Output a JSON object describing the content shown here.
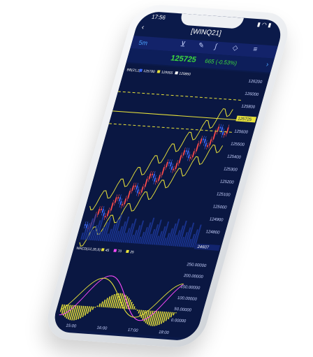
{
  "status": {
    "time": "17:56",
    "icons": "▮ ◠ ▮"
  },
  "header": {
    "back_icon": "chevron-left-icon",
    "ticker": "[WINQ21]"
  },
  "toolbar": {
    "timeframe": "5m"
  },
  "quote": {
    "price": "125725",
    "change": "665 (-0.53%)"
  },
  "chart_data": {
    "type": "line",
    "indicator_title": "BB(21,2)",
    "legend": [
      "125780",
      "129955",
      "125860"
    ],
    "price_ticks": [
      "126200",
      "126000",
      "125800",
      "125725",
      "125600",
      "125500",
      "125400",
      "125300",
      "125200",
      "125100",
      "125000",
      "124900",
      "124800"
    ],
    "volume_label": "24607",
    "macd_title": "MACD(12,26,9)",
    "macd_legend": [
      "45",
      "70",
      "25"
    ],
    "macd_ticks": [
      "250.00000",
      "200.00000",
      "150.00000",
      "100.00000",
      "50.00000",
      "0.00000"
    ],
    "time_ticks": [
      "15:00",
      "16:00",
      "17:00",
      "18:00"
    ]
  },
  "colors": {
    "bg": "#0b1a4a",
    "up": "#ff4b4b",
    "down": "#3e6bff",
    "band": "#e8e23a",
    "price": "#3ddc3d"
  }
}
